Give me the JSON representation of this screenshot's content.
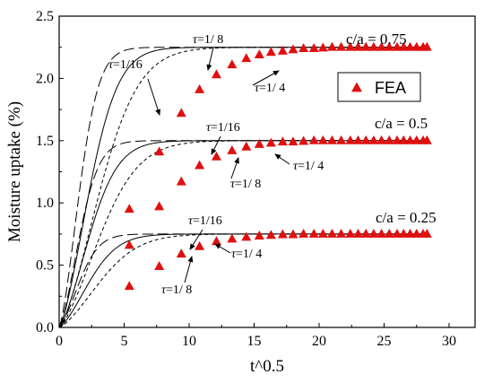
{
  "chart_data": {
    "type": "line",
    "xlabel": "t^0.5",
    "ylabel": "Moisture uptake (%)",
    "xlim": [
      0,
      32
    ],
    "ylim": [
      0,
      2.5
    ],
    "xticks": [
      "0",
      "5",
      "10",
      "15",
      "20",
      "25",
      "30"
    ],
    "yticks": [
      "0.0",
      "0.5",
      "1.0",
      "1.5",
      "2.0",
      "2.5"
    ],
    "legend": {
      "position": "upper-right",
      "label": "FEA",
      "marker_color": "#e01010"
    },
    "groups": [
      {
        "ratio_label": "c/a = 0.75",
        "saturation": 2.25,
        "curves": [
          {
            "tau": "1/16",
            "rate": 0.4,
            "style": "long-dash"
          },
          {
            "tau": "1/8",
            "rate": 0.27,
            "style": "solid"
          },
          {
            "tau": "1/4",
            "rate": 0.2,
            "style": "short-dash"
          }
        ],
        "fea_points": [
          [
            5.4,
            0.95
          ],
          [
            7.7,
            1.41
          ],
          [
            9.4,
            1.72
          ],
          [
            10.8,
            1.91
          ],
          [
            12.1,
            2.03
          ],
          [
            13.3,
            2.11
          ],
          [
            14.4,
            2.16
          ],
          [
            15.4,
            2.19
          ],
          [
            16.3,
            2.21
          ],
          [
            17.2,
            2.22
          ],
          [
            18.0,
            2.23
          ],
          [
            18.8,
            2.24
          ],
          [
            19.6,
            2.24
          ],
          [
            20.3,
            2.245
          ],
          [
            21.0,
            2.25
          ],
          [
            21.7,
            2.25
          ],
          [
            22.4,
            2.25
          ],
          [
            23.0,
            2.25
          ],
          [
            23.6,
            2.25
          ],
          [
            24.2,
            2.25
          ],
          [
            24.8,
            2.25
          ],
          [
            25.4,
            2.25
          ],
          [
            26.0,
            2.25
          ],
          [
            26.5,
            2.25
          ],
          [
            27.0,
            2.25
          ],
          [
            27.5,
            2.25
          ],
          [
            28.0,
            2.25
          ],
          [
            28.3,
            2.25
          ]
        ]
      },
      {
        "ratio_label": "c/a = 0.5",
        "saturation": 1.5,
        "curves": [
          {
            "tau": "1/16",
            "rate": 0.4,
            "style": "long-dash"
          },
          {
            "tau": "1/8",
            "rate": 0.27,
            "style": "solid"
          },
          {
            "tau": "1/4",
            "rate": 0.2,
            "style": "short-dash"
          }
        ],
        "fea_points": [
          [
            5.4,
            0.66
          ],
          [
            7.7,
            0.97
          ],
          [
            9.4,
            1.17
          ],
          [
            10.8,
            1.3
          ],
          [
            12.1,
            1.37
          ],
          [
            13.3,
            1.42
          ],
          [
            14.4,
            1.45
          ],
          [
            15.4,
            1.47
          ],
          [
            16.3,
            1.48
          ],
          [
            17.2,
            1.49
          ],
          [
            18.0,
            1.49
          ],
          [
            18.8,
            1.495
          ],
          [
            19.6,
            1.5
          ],
          [
            20.3,
            1.5
          ],
          [
            21.0,
            1.5
          ],
          [
            21.7,
            1.5
          ],
          [
            22.4,
            1.5
          ],
          [
            23.0,
            1.5
          ],
          [
            23.6,
            1.5
          ],
          [
            24.2,
            1.5
          ],
          [
            24.8,
            1.5
          ],
          [
            25.4,
            1.5
          ],
          [
            26.0,
            1.5
          ],
          [
            26.5,
            1.5
          ],
          [
            27.0,
            1.5
          ],
          [
            27.5,
            1.5
          ],
          [
            28.0,
            1.5
          ],
          [
            28.3,
            1.5
          ]
        ]
      },
      {
        "ratio_label": "c/a = 0.25",
        "saturation": 0.75,
        "curves": [
          {
            "tau": "1/16",
            "rate": 0.4,
            "style": "long-dash"
          },
          {
            "tau": "1/8",
            "rate": 0.27,
            "style": "solid"
          },
          {
            "tau": "1/4",
            "rate": 0.2,
            "style": "short-dash"
          }
        ],
        "fea_points": [
          [
            5.4,
            0.33
          ],
          [
            7.7,
            0.49
          ],
          [
            9.4,
            0.59
          ],
          [
            10.8,
            0.65
          ],
          [
            12.1,
            0.69
          ],
          [
            13.3,
            0.71
          ],
          [
            14.4,
            0.725
          ],
          [
            15.4,
            0.735
          ],
          [
            16.3,
            0.74
          ],
          [
            17.2,
            0.745
          ],
          [
            18.0,
            0.745
          ],
          [
            18.8,
            0.75
          ],
          [
            19.6,
            0.75
          ],
          [
            20.3,
            0.75
          ],
          [
            21.0,
            0.75
          ],
          [
            21.7,
            0.75
          ],
          [
            22.4,
            0.75
          ],
          [
            23.0,
            0.75
          ],
          [
            23.6,
            0.75
          ],
          [
            24.2,
            0.75
          ],
          [
            24.8,
            0.75
          ],
          [
            25.4,
            0.75
          ],
          [
            26.0,
            0.75
          ],
          [
            26.5,
            0.75
          ],
          [
            27.0,
            0.75
          ],
          [
            27.5,
            0.75
          ],
          [
            28.0,
            0.75
          ],
          [
            28.3,
            0.75
          ]
        ]
      }
    ],
    "annotations": [
      {
        "name": "annot-075-tau-1-16",
        "prefix": "τ",
        "text": "=1/16"
      },
      {
        "name": "annot-075-tau-1-8",
        "prefix": "τ",
        "text": "=1/ 8"
      },
      {
        "name": "annot-075-tau-1-4",
        "prefix": "τ",
        "text": "=1/ 4"
      },
      {
        "name": "annot-05-tau-1-16",
        "prefix": "τ",
        "text": "=1/16"
      },
      {
        "name": "annot-05-tau-1-8",
        "prefix": "τ",
        "text": "=1/ 8"
      },
      {
        "name": "annot-05-tau-1-4",
        "prefix": "τ",
        "text": "=1/ 4"
      },
      {
        "name": "annot-025-tau-1-16",
        "prefix": "τ",
        "text": "=1/16"
      },
      {
        "name": "annot-025-tau-1-8",
        "prefix": "τ",
        "text": "=1/ 8"
      },
      {
        "name": "annot-025-tau-1-4",
        "prefix": "τ",
        "text": "=1/ 4"
      }
    ]
  }
}
